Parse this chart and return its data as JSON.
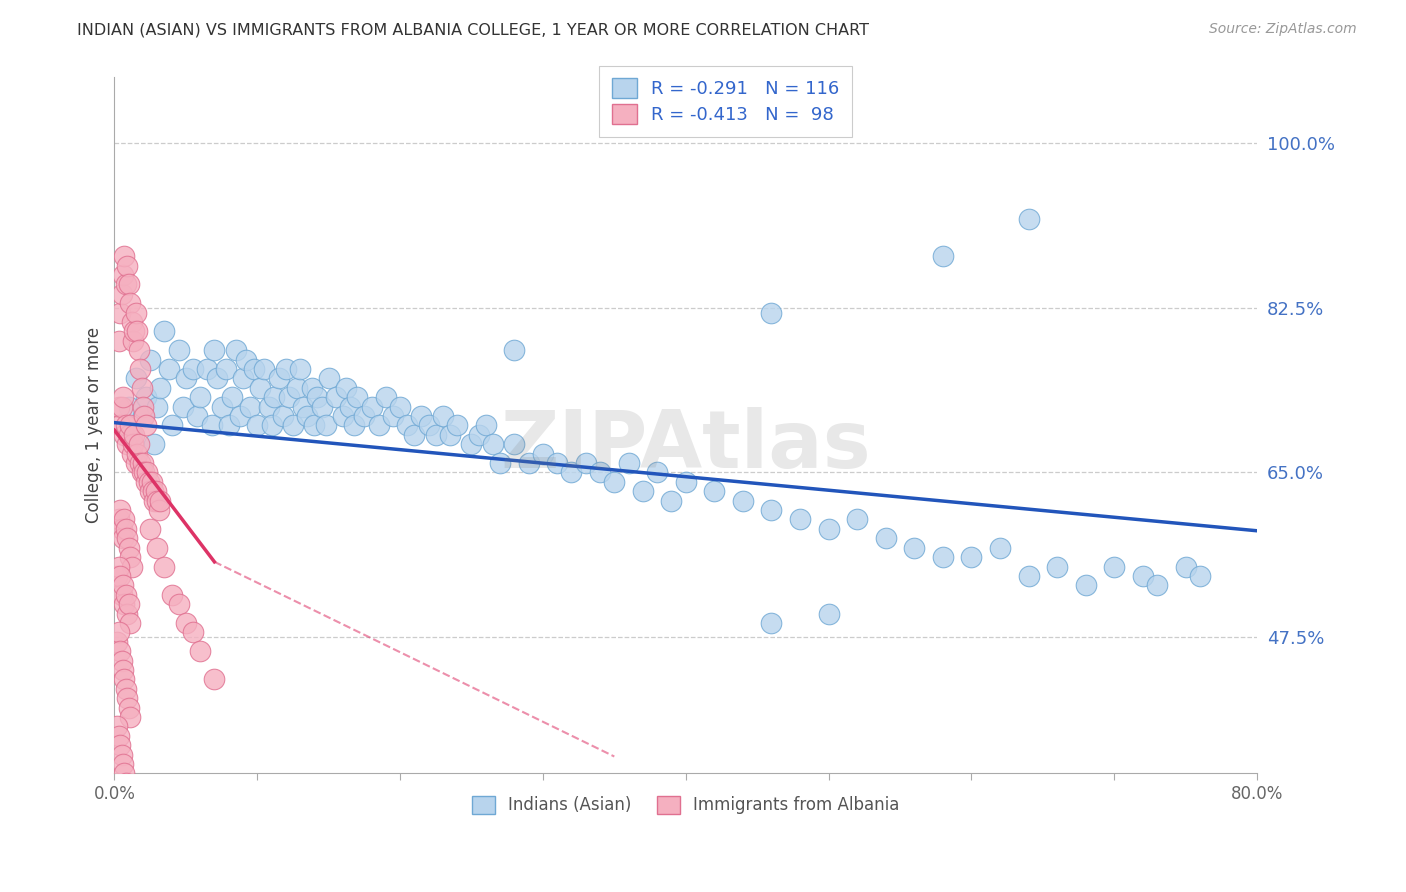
{
  "title": "INDIAN (ASIAN) VS IMMIGRANTS FROM ALBANIA COLLEGE, 1 YEAR OR MORE CORRELATION CHART",
  "source": "Source: ZipAtlas.com",
  "ylabel": "College, 1 year or more",
  "watermark": "ZIPAtlas",
  "xlim": [
    0.0,
    0.8
  ],
  "ylim": [
    0.33,
    1.07
  ],
  "yticks": [
    0.475,
    0.65,
    0.825,
    1.0
  ],
  "ytick_labels": [
    "47.5%",
    "65.0%",
    "82.5%",
    "100.0%"
  ],
  "xticks": [
    0.0,
    0.1,
    0.2,
    0.3,
    0.4,
    0.5,
    0.6,
    0.7,
    0.8
  ],
  "xtick_labels": [
    "0.0%",
    "",
    "",
    "",
    "",
    "",
    "",
    "",
    "80.0%"
  ],
  "series1_color": "#b8d4ed",
  "series1_edge": "#6fa8d4",
  "series2_color": "#f5b0c0",
  "series2_edge": "#e07090",
  "trend1_color": "#2255bb",
  "trend2_color": "#dd3366",
  "label1": "Indians (Asian)",
  "label2": "Immigrants from Albania",
  "legend_line1": "R = -0.291   N = 116",
  "legend_line2": "R = -0.413   N =  98",
  "trend1_x0": 0.0,
  "trend1_y0": 0.703,
  "trend1_x1": 0.8,
  "trend1_y1": 0.588,
  "trend2_x0": 0.0,
  "trend2_y0": 0.695,
  "trend2_x1": 0.07,
  "trend2_y1": 0.555,
  "trend2_dash_x1": 0.35,
  "trend2_dash_y1": 0.348,
  "Indians_x": [
    0.01,
    0.012,
    0.015,
    0.02,
    0.022,
    0.025,
    0.028,
    0.03,
    0.032,
    0.035,
    0.038,
    0.04,
    0.045,
    0.048,
    0.05,
    0.055,
    0.058,
    0.06,
    0.065,
    0.068,
    0.07,
    0.072,
    0.075,
    0.078,
    0.08,
    0.082,
    0.085,
    0.088,
    0.09,
    0.092,
    0.095,
    0.098,
    0.1,
    0.102,
    0.105,
    0.108,
    0.11,
    0.112,
    0.115,
    0.118,
    0.12,
    0.122,
    0.125,
    0.128,
    0.13,
    0.132,
    0.135,
    0.138,
    0.14,
    0.142,
    0.145,
    0.148,
    0.15,
    0.155,
    0.16,
    0.162,
    0.165,
    0.168,
    0.17,
    0.175,
    0.18,
    0.185,
    0.19,
    0.195,
    0.2,
    0.205,
    0.21,
    0.215,
    0.22,
    0.225,
    0.23,
    0.235,
    0.24,
    0.25,
    0.255,
    0.26,
    0.265,
    0.27,
    0.28,
    0.29,
    0.3,
    0.31,
    0.32,
    0.33,
    0.34,
    0.35,
    0.36,
    0.37,
    0.38,
    0.39,
    0.4,
    0.42,
    0.44,
    0.46,
    0.48,
    0.5,
    0.52,
    0.54,
    0.56,
    0.58,
    0.6,
    0.62,
    0.64,
    0.66,
    0.68,
    0.7,
    0.72,
    0.73,
    0.75,
    0.76,
    0.64,
    0.58,
    0.46,
    0.5,
    0.46,
    0.28
  ],
  "Indians_y": [
    0.72,
    0.69,
    0.75,
    0.71,
    0.73,
    0.77,
    0.68,
    0.72,
    0.74,
    0.8,
    0.76,
    0.7,
    0.78,
    0.72,
    0.75,
    0.76,
    0.71,
    0.73,
    0.76,
    0.7,
    0.78,
    0.75,
    0.72,
    0.76,
    0.7,
    0.73,
    0.78,
    0.71,
    0.75,
    0.77,
    0.72,
    0.76,
    0.7,
    0.74,
    0.76,
    0.72,
    0.7,
    0.73,
    0.75,
    0.71,
    0.76,
    0.73,
    0.7,
    0.74,
    0.76,
    0.72,
    0.71,
    0.74,
    0.7,
    0.73,
    0.72,
    0.7,
    0.75,
    0.73,
    0.71,
    0.74,
    0.72,
    0.7,
    0.73,
    0.71,
    0.72,
    0.7,
    0.73,
    0.71,
    0.72,
    0.7,
    0.69,
    0.71,
    0.7,
    0.69,
    0.71,
    0.69,
    0.7,
    0.68,
    0.69,
    0.7,
    0.68,
    0.66,
    0.68,
    0.66,
    0.67,
    0.66,
    0.65,
    0.66,
    0.65,
    0.64,
    0.66,
    0.63,
    0.65,
    0.62,
    0.64,
    0.63,
    0.62,
    0.61,
    0.6,
    0.59,
    0.6,
    0.58,
    0.57,
    0.56,
    0.56,
    0.57,
    0.54,
    0.55,
    0.53,
    0.55,
    0.54,
    0.53,
    0.55,
    0.54,
    0.92,
    0.88,
    0.82,
    0.5,
    0.49,
    0.78
  ],
  "Albania_x": [
    0.003,
    0.004,
    0.005,
    0.006,
    0.007,
    0.008,
    0.009,
    0.01,
    0.011,
    0.012,
    0.013,
    0.014,
    0.015,
    0.016,
    0.017,
    0.018,
    0.019,
    0.02,
    0.021,
    0.022,
    0.023,
    0.024,
    0.025,
    0.026,
    0.027,
    0.028,
    0.029,
    0.03,
    0.031,
    0.032,
    0.003,
    0.004,
    0.005,
    0.006,
    0.007,
    0.008,
    0.009,
    0.01,
    0.011,
    0.012,
    0.013,
    0.014,
    0.015,
    0.016,
    0.017,
    0.018,
    0.019,
    0.02,
    0.021,
    0.022,
    0.003,
    0.004,
    0.005,
    0.006,
    0.007,
    0.008,
    0.009,
    0.01,
    0.011,
    0.012,
    0.002,
    0.003,
    0.004,
    0.005,
    0.006,
    0.007,
    0.008,
    0.009,
    0.01,
    0.011,
    0.002,
    0.003,
    0.004,
    0.005,
    0.006,
    0.007,
    0.008,
    0.009,
    0.01,
    0.011,
    0.002,
    0.003,
    0.004,
    0.005,
    0.006,
    0.007,
    0.008,
    0.009,
    0.01,
    0.025,
    0.03,
    0.035,
    0.04,
    0.045,
    0.05,
    0.055,
    0.06,
    0.07
  ],
  "Albania_y": [
    0.72,
    0.7,
    0.72,
    0.73,
    0.69,
    0.7,
    0.68,
    0.69,
    0.7,
    0.67,
    0.68,
    0.69,
    0.66,
    0.67,
    0.68,
    0.66,
    0.65,
    0.66,
    0.65,
    0.64,
    0.65,
    0.64,
    0.63,
    0.64,
    0.63,
    0.62,
    0.63,
    0.62,
    0.61,
    0.62,
    0.79,
    0.82,
    0.84,
    0.86,
    0.88,
    0.85,
    0.87,
    0.85,
    0.83,
    0.81,
    0.79,
    0.8,
    0.82,
    0.8,
    0.78,
    0.76,
    0.74,
    0.72,
    0.71,
    0.7,
    0.6,
    0.61,
    0.59,
    0.58,
    0.6,
    0.59,
    0.58,
    0.57,
    0.56,
    0.55,
    0.54,
    0.55,
    0.54,
    0.52,
    0.53,
    0.51,
    0.52,
    0.5,
    0.51,
    0.49,
    0.47,
    0.48,
    0.46,
    0.45,
    0.44,
    0.43,
    0.42,
    0.41,
    0.4,
    0.39,
    0.38,
    0.37,
    0.36,
    0.35,
    0.34,
    0.33,
    0.32,
    0.31,
    0.3,
    0.59,
    0.57,
    0.55,
    0.52,
    0.51,
    0.49,
    0.48,
    0.46,
    0.43
  ]
}
